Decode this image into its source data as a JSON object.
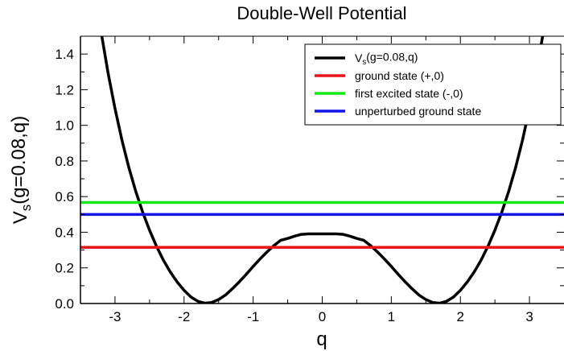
{
  "chart_data": {
    "type": "line",
    "title": "Double-Well Potential",
    "xlabel": "q",
    "ylabel": {
      "base": "V",
      "sub": "s",
      "rest": "(g=0.08,q)"
    },
    "xlim": [
      -3.5,
      3.5
    ],
    "ylim": [
      0.0,
      1.5
    ],
    "xticks": [
      -3,
      -2,
      -1,
      0,
      1,
      2,
      3
    ],
    "xtick_labels": [
      "-3",
      "-2",
      "-1",
      "0",
      "1",
      "2",
      "3"
    ],
    "yticks": [
      0.0,
      0.2,
      0.4,
      0.6,
      0.8,
      1.0,
      1.2,
      1.4
    ],
    "ytick_labels": [
      "0.0",
      "0.2",
      "0.4",
      "0.6",
      "0.8",
      "1.0",
      "1.2",
      "1.4"
    ],
    "legend_position": "top-right",
    "series": [
      {
        "name": "V_s(g=0.08,q)",
        "legend": {
          "base": "V",
          "sub": "s",
          "rest": "(g=0.08,q)"
        },
        "color": "#000000",
        "kind": "curve",
        "x": [
          -3.2,
          -3.1,
          -3.0,
          -2.9,
          -2.8,
          -2.7,
          -2.6,
          -2.5,
          -2.4,
          -2.3,
          -2.2,
          -2.1,
          -2.0,
          -1.9,
          -1.8,
          -1.7,
          -1.6,
          -1.5,
          -1.4,
          -1.3,
          -1.2,
          -1.1,
          -1.0,
          -0.9,
          -0.8,
          -0.7,
          -0.6,
          -0.5,
          -0.4,
          -0.3,
          -0.2,
          -0.1,
          0.0,
          0.1,
          0.2,
          0.3,
          0.4,
          0.5,
          0.6,
          0.7,
          0.8,
          0.9,
          1.0,
          1.1,
          1.2,
          1.3,
          1.4,
          1.5,
          1.6,
          1.7,
          1.8,
          1.9,
          2.0,
          2.1,
          2.2,
          2.3,
          2.4,
          2.5,
          2.6,
          2.7,
          2.8,
          2.9,
          3.0,
          3.1,
          3.2
        ],
        "y": [
          1.521,
          1.294,
          1.095,
          0.918,
          0.764,
          0.63,
          0.513,
          0.411,
          0.322,
          0.244,
          0.177,
          0.121,
          0.074,
          0.036,
          0.012,
          0.002,
          0.006,
          0.022,
          0.048,
          0.083,
          0.122,
          0.164,
          0.208,
          0.25,
          0.289,
          0.325,
          0.355,
          0.365,
          0.378,
          0.388,
          0.391,
          0.391,
          0.391,
          0.391,
          0.391,
          0.388,
          0.378,
          0.365,
          0.355,
          0.325,
          0.289,
          0.25,
          0.208,
          0.164,
          0.122,
          0.083,
          0.048,
          0.022,
          0.006,
          0.002,
          0.012,
          0.036,
          0.074,
          0.121,
          0.177,
          0.244,
          0.322,
          0.411,
          0.513,
          0.63,
          0.764,
          0.918,
          1.095,
          1.294,
          1.521
        ]
      },
      {
        "name": "ground state (+,0)",
        "legend": {
          "base": "ground state (+,0)"
        },
        "color": "#e8151b",
        "kind": "hline",
        "y": 0.315
      },
      {
        "name": "first excited state (-,0)",
        "legend": {
          "base": "first excited state (-,0)"
        },
        "color": "#15e815",
        "kind": "hline",
        "y": 0.567
      },
      {
        "name": "unperturbed ground state",
        "legend": {
          "base": "unperturbed ground state"
        },
        "color": "#1515e8",
        "kind": "hline",
        "y": 0.5
      }
    ]
  }
}
